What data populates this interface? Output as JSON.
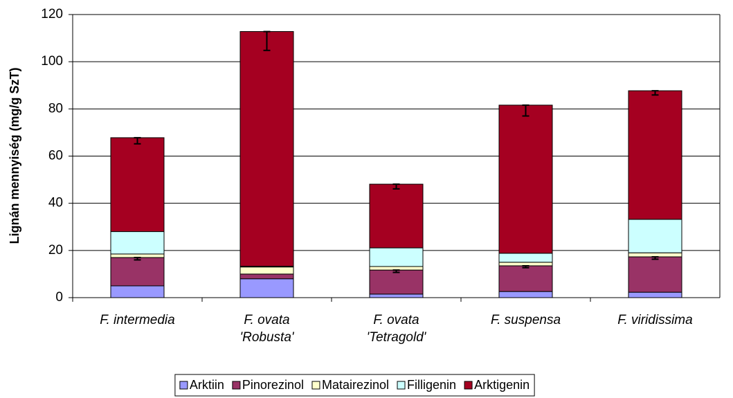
{
  "chart_data": {
    "type": "stacked_bar",
    "y_label": "Lignán mennyiség (mg/g SzT)",
    "categories": [
      [
        "F. intermedia"
      ],
      [
        "F. ovata",
        "'Robusta'"
      ],
      [
        "F. ovata",
        "'Tetragold'"
      ],
      [
        "F. suspensa"
      ],
      [
        "F. viridissima"
      ]
    ],
    "series": [
      {
        "name": "Arktiin",
        "color": "#9999ff",
        "values": [
          5,
          8,
          1.5,
          2.6,
          2.3
        ]
      },
      {
        "name": "Pinorezinol",
        "color": "#993366",
        "values": [
          12,
          2,
          10.2,
          10.9,
          15
        ],
        "errors": [
          1,
          null,
          1,
          0.8,
          1
        ]
      },
      {
        "name": "Matairezinol",
        "color": "#ffffcc",
        "values": [
          1.5,
          3,
          1.5,
          1.5,
          1.7
        ]
      },
      {
        "name": "Filligenin",
        "color": "#ccffff",
        "values": [
          9.5,
          0.3,
          7.9,
          3.8,
          14.2
        ]
      },
      {
        "name": "Arktigenin",
        "color": "#a50021",
        "values": [
          39.8,
          99.5,
          27,
          62.8,
          54.5
        ],
        "errors": [
          2.6,
          8,
          2,
          4.6,
          1.8
        ]
      }
    ],
    "ylim": [
      0,
      120
    ],
    "yticks": [
      0,
      20,
      40,
      60,
      80,
      100,
      120
    ],
    "legend": "bottom"
  }
}
